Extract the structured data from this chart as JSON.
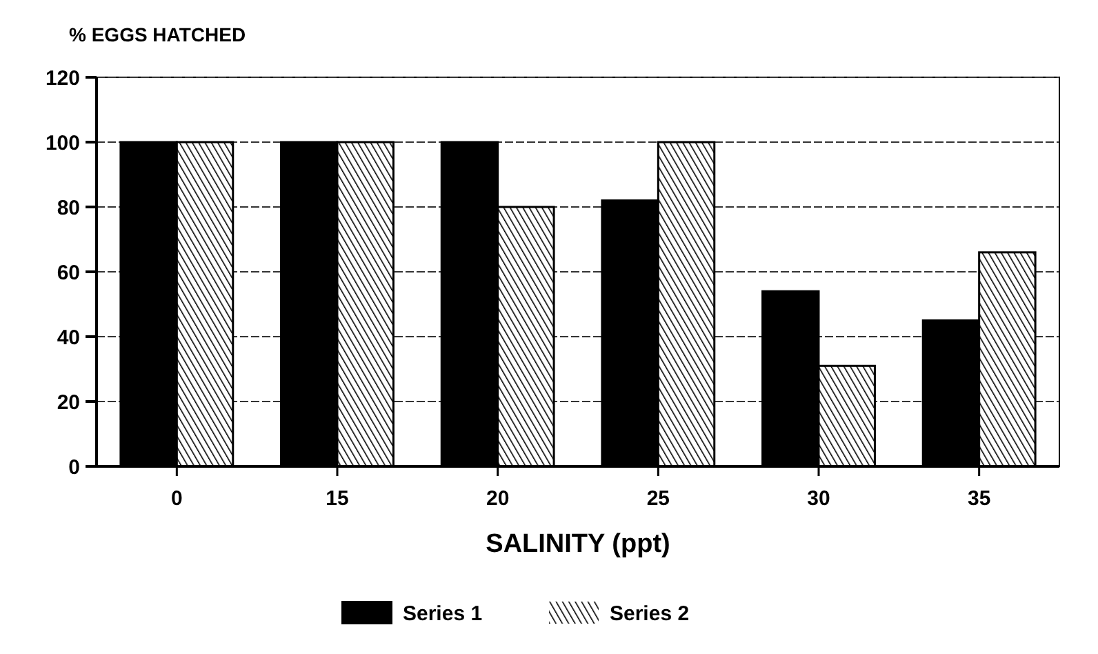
{
  "chart_data": {
    "type": "bar",
    "ylabel": "% EGGS HATCHED",
    "xlabel": "SALINITY (ppt)",
    "categories": [
      "0",
      "15",
      "20",
      "25",
      "30",
      "35"
    ],
    "series": [
      {
        "name": "Series 1",
        "color": "#000000",
        "values": [
          100,
          100,
          100,
          82,
          54,
          45
        ]
      },
      {
        "name": "Series 2",
        "color": "#000000",
        "values": [
          100,
          100,
          80,
          100,
          31,
          66
        ]
      }
    ],
    "ylim": [
      0,
      120
    ],
    "yticks": [
      0,
      20,
      40,
      60,
      80,
      100,
      120
    ],
    "grid": "y",
    "legend": "bottom"
  }
}
